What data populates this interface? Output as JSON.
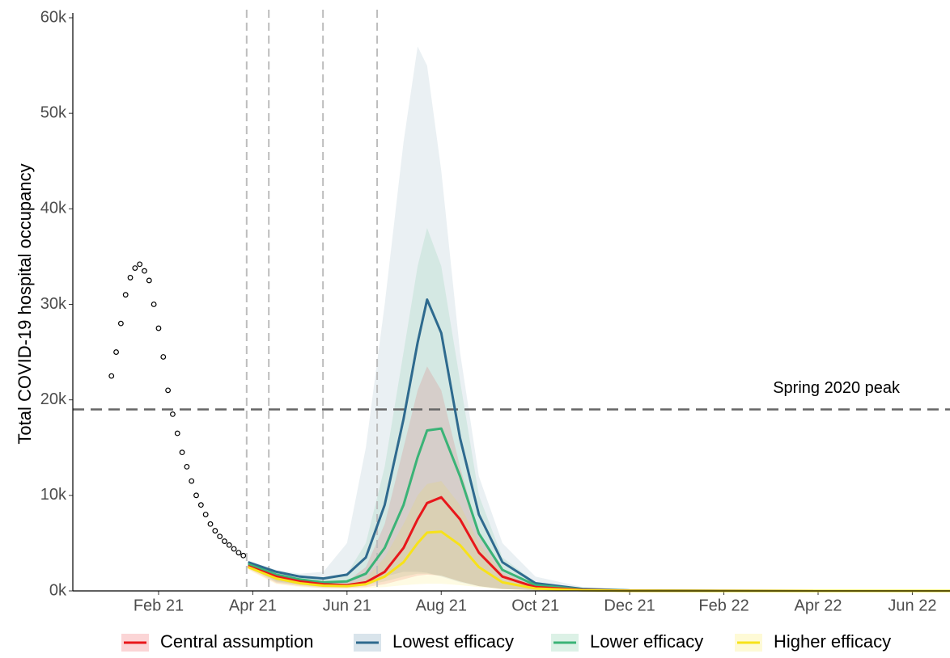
{
  "chart_data": {
    "type": "line",
    "y_label": "Total COVID-19 hospital occupancy",
    "xlim": [
      -0.82,
      17.8
    ],
    "ylim": [
      0,
      60000
    ],
    "xticks": [
      {
        "value": 1,
        "label": "Feb 21"
      },
      {
        "value": 3,
        "label": "Apr 21"
      },
      {
        "value": 5,
        "label": "Jun 21"
      },
      {
        "value": 7,
        "label": "Aug 21"
      },
      {
        "value": 9,
        "label": "Oct 21"
      },
      {
        "value": 11,
        "label": "Dec 21"
      },
      {
        "value": 13,
        "label": "Feb 22"
      },
      {
        "value": 15,
        "label": "Apr 22"
      },
      {
        "value": 17,
        "label": "Jun 22"
      }
    ],
    "yticks": [
      {
        "value": 0,
        "label": "0k"
      },
      {
        "value": 10000,
        "label": "10k"
      },
      {
        "value": 20000,
        "label": "20k"
      },
      {
        "value": 30000,
        "label": "30k"
      },
      {
        "value": 40000,
        "label": "40k"
      },
      {
        "value": 50000,
        "label": "50k"
      },
      {
        "value": 60000,
        "label": "60k"
      }
    ],
    "vlines": [
      2.87,
      3.34,
      4.49,
      5.64
    ],
    "hline": {
      "value": 19000,
      "label": "Spring 2020 peak"
    },
    "observed": {
      "color": "#000000",
      "x": [
        0.0,
        0.1,
        0.2,
        0.3,
        0.4,
        0.5,
        0.6,
        0.7,
        0.8,
        0.9,
        1.0,
        1.1,
        1.2,
        1.3,
        1.4,
        1.5,
        1.6,
        1.7,
        1.8,
        1.9,
        2.0,
        2.1,
        2.2,
        2.3,
        2.4,
        2.5,
        2.6,
        2.7,
        2.8
      ],
      "values": [
        22500,
        25000,
        28000,
        31000,
        32800,
        33800,
        34200,
        33500,
        32500,
        30000,
        27500,
        24500,
        21000,
        18500,
        16500,
        14500,
        13000,
        11500,
        10000,
        9000,
        8000,
        7000,
        6300,
        5700,
        5200,
        4800,
        4400,
        4000,
        3700
      ]
    },
    "x": [
      2.9,
      3.5,
      4,
      4.5,
      5,
      5.4,
      5.8,
      6.2,
      6.5,
      6.7,
      7,
      7.4,
      7.8,
      8.3,
      9,
      10,
      11,
      13,
      17.8
    ],
    "series": [
      {
        "name": "Central assumption",
        "color": "#e8171b",
        "values": [
          2600,
          1500,
          1000,
          700,
          600,
          900,
          2000,
          4500,
          7500,
          9200,
          9800,
          7500,
          4000,
          1500,
          400,
          100,
          20,
          5,
          0
        ],
        "upper": [
          2800,
          1700,
          1200,
          900,
          1000,
          2500,
          7000,
          15000,
          21000,
          23500,
          21000,
          13000,
          6000,
          2000,
          500,
          120,
          30,
          5,
          0
        ],
        "lower": [
          2300,
          800,
          500,
          300,
          300,
          400,
          700,
          1200,
          1600,
          1700,
          1600,
          1000,
          500,
          200,
          50,
          10,
          0,
          0,
          0
        ]
      },
      {
        "name": "Lowest efficacy",
        "color": "#2e6a8e",
        "values": [
          3000,
          2000,
          1500,
          1300,
          1700,
          3500,
          9000,
          18000,
          26000,
          30500,
          27000,
          16000,
          8000,
          3000,
          800,
          200,
          50,
          10,
          0
        ],
        "upper": [
          3200,
          2200,
          1800,
          2000,
          5000,
          15000,
          30000,
          47000,
          57000,
          55000,
          44000,
          25000,
          12000,
          5000,
          1500,
          400,
          100,
          20,
          0
        ],
        "lower": [
          2600,
          1000,
          700,
          500,
          600,
          900,
          1500,
          2000,
          2000,
          1900,
          1500,
          900,
          500,
          200,
          80,
          20,
          5,
          0,
          0
        ]
      },
      {
        "name": "Lower efficacy",
        "color": "#3bb377",
        "values": [
          2800,
          1700,
          1200,
          900,
          1000,
          1800,
          4500,
          9000,
          14000,
          16800,
          17000,
          12000,
          6000,
          2200,
          600,
          150,
          40,
          5,
          0
        ],
        "upper": [
          3000,
          1900,
          1400,
          1200,
          1800,
          5000,
          13000,
          25000,
          34000,
          38000,
          34000,
          22000,
          10000,
          3500,
          900,
          200,
          50,
          10,
          0
        ],
        "lower": [
          2500,
          900,
          600,
          400,
          400,
          600,
          1000,
          1500,
          1800,
          1800,
          1600,
          1000,
          500,
          200,
          60,
          15,
          5,
          0,
          0
        ]
      },
      {
        "name": "Higher efficacy",
        "color": "#f7e21a",
        "values": [
          2500,
          1300,
          800,
          550,
          500,
          700,
          1500,
          3000,
          5000,
          6100,
          6200,
          4800,
          2500,
          900,
          250,
          60,
          10,
          0,
          0
        ],
        "upper": [
          2700,
          1500,
          1000,
          700,
          700,
          1300,
          3500,
          7000,
          10000,
          11200,
          11500,
          9000,
          5000,
          1800,
          400,
          100,
          20,
          0,
          0
        ],
        "lower": [
          2200,
          700,
          400,
          250,
          200,
          300,
          400,
          600,
          700,
          750,
          750,
          600,
          400,
          150,
          40,
          10,
          0,
          0,
          0
        ]
      }
    ]
  }
}
